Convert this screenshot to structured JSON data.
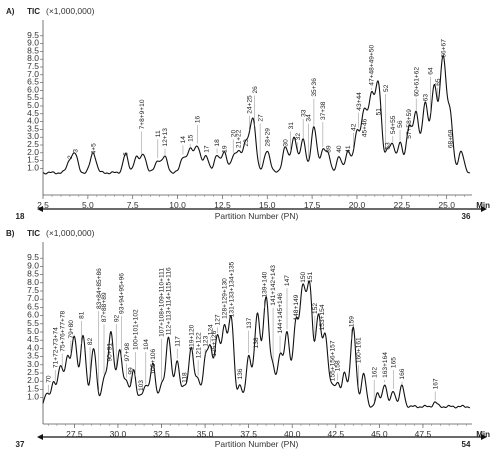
{
  "chart_data": [
    {
      "type": "line",
      "panel_label": "A)",
      "ylabel": "TIC",
      "y_multiplier": "(×1,000,000)",
      "ylim": [
        0,
        10
      ],
      "yticks": [
        "1.0",
        "1.5",
        "2.0",
        "2.5",
        "3.0",
        "3.5",
        "4.0",
        "4.5",
        "5.0",
        "5.5",
        "6.0",
        "6.5",
        "7.0",
        "7.5",
        "8.0",
        "8.5",
        "9.0",
        "9.5"
      ],
      "xlim": [
        2.5,
        26.3
      ],
      "xticks": [
        "2.5",
        "5.0",
        "7.5",
        "10.0",
        "12.5",
        "15.0",
        "17.5",
        "20.0",
        "22.5",
        "25.0"
      ],
      "xunit": "Min",
      "pn_label": "Partition Number (PN)",
      "pn_start": "18",
      "pn_end": "36",
      "baseline": 0.72,
      "peaks": [
        {
          "t": 4.0,
          "h": 1.0,
          "w": 0.16
        },
        {
          "t": 4.3,
          "h": 1.3,
          "w": 0.15
        },
        {
          "t": 5.3,
          "h": 1.5,
          "w": 0.16
        },
        {
          "t": 7.1,
          "h": 1.4,
          "w": 0.14
        },
        {
          "t": 7.7,
          "h": 1.2,
          "w": 0.15
        },
        {
          "t": 8.1,
          "h": 1.4,
          "w": 0.15
        },
        {
          "t": 8.9,
          "h": 1.0,
          "w": 0.16
        },
        {
          "t": 9.3,
          "h": 1.2,
          "w": 0.15
        },
        {
          "t": 10.3,
          "h": 1.2,
          "w": 0.15
        },
        {
          "t": 10.7,
          "h": 1.6,
          "w": 0.16
        },
        {
          "t": 11.1,
          "h": 1.9,
          "w": 0.17
        },
        {
          "t": 11.6,
          "h": 1.3,
          "w": 0.15
        },
        {
          "t": 12.2,
          "h": 1.3,
          "w": 0.15
        },
        {
          "t": 12.6,
          "h": 1.5,
          "w": 0.15
        },
        {
          "t": 13.1,
          "h": 1.2,
          "w": 0.14
        },
        {
          "t": 13.4,
          "h": 1.4,
          "w": 0.15
        },
        {
          "t": 13.8,
          "h": 2.1,
          "w": 0.16
        },
        {
          "t": 14.2,
          "h": 3.6,
          "w": 0.17
        },
        {
          "t": 15.0,
          "h": 1.6,
          "w": 0.17
        },
        {
          "t": 16.0,
          "h": 1.9,
          "w": 0.15
        },
        {
          "t": 16.5,
          "h": 2.5,
          "w": 0.16
        },
        {
          "t": 17.0,
          "h": 2.3,
          "w": 0.15
        },
        {
          "t": 17.6,
          "h": 3.1,
          "w": 0.16
        },
        {
          "t": 18.1,
          "h": 1.6,
          "w": 0.14
        },
        {
          "t": 18.4,
          "h": 1.3,
          "w": 0.14
        },
        {
          "t": 19.0,
          "h": 1.2,
          "w": 0.14
        },
        {
          "t": 19.5,
          "h": 1.6,
          "w": 0.15
        },
        {
          "t": 20.0,
          "h": 2.8,
          "w": 0.16
        },
        {
          "t": 20.4,
          "h": 3.9,
          "w": 0.16
        },
        {
          "t": 20.8,
          "h": 4.9,
          "w": 0.17
        },
        {
          "t": 21.2,
          "h": 5.7,
          "w": 0.17
        },
        {
          "t": 21.7,
          "h": 1.5,
          "w": 0.14
        },
        {
          "t": 22.0,
          "h": 1.9,
          "w": 0.14
        },
        {
          "t": 22.4,
          "h": 2.1,
          "w": 0.14
        },
        {
          "t": 22.9,
          "h": 3.1,
          "w": 0.16
        },
        {
          "t": 23.3,
          "h": 3.9,
          "w": 0.16
        },
        {
          "t": 23.8,
          "h": 4.6,
          "w": 0.17
        },
        {
          "t": 24.3,
          "h": 5.7,
          "w": 0.17
        },
        {
          "t": 24.8,
          "h": 7.6,
          "w": 0.18
        },
        {
          "t": 25.2,
          "h": 3.6,
          "w": 0.15
        },
        {
          "t": 25.8,
          "h": 1.6,
          "w": 0.15
        }
      ],
      "labels": [
        {
          "t": 4.0,
          "text": "2",
          "y": 1.6
        },
        {
          "t": 4.3,
          "text": "3",
          "y": 2.0
        },
        {
          "t": 5.3,
          "text": "4+5",
          "y": 1.9
        },
        {
          "t": 7.1,
          "text": "6",
          "y": 1.8
        },
        {
          "t": 8.0,
          "text": "7+8+9+10",
          "y": 3.5
        },
        {
          "t": 8.9,
          "text": "11",
          "y": 3.0
        },
        {
          "t": 9.3,
          "text": "12+13",
          "y": 2.4
        },
        {
          "t": 10.3,
          "text": "14",
          "y": 2.6
        },
        {
          "t": 10.7,
          "text": "15",
          "y": 2.7
        },
        {
          "t": 11.1,
          "text": "16",
          "y": 3.9
        },
        {
          "t": 11.6,
          "text": "17",
          "y": 2.0
        },
        {
          "t": 12.2,
          "text": "18",
          "y": 2.4
        },
        {
          "t": 12.6,
          "text": "19",
          "y": 2.0
        },
        {
          "t": 13.1,
          "text": "20",
          "y": 3.0
        },
        {
          "t": 13.4,
          "text": "21+22",
          "y": 2.3
        },
        {
          "t": 13.8,
          "text": "23",
          "y": 2.4
        },
        {
          "t": 14.0,
          "text": "24+25",
          "y": 4.5
        },
        {
          "t": 14.3,
          "text": "26",
          "y": 5.8
        },
        {
          "t": 14.6,
          "text": "27",
          "y": 4.0
        },
        {
          "t": 15.0,
          "text": "28+29",
          "y": 2.4
        },
        {
          "t": 16.0,
          "text": "30",
          "y": 2.4
        },
        {
          "t": 16.3,
          "text": "31",
          "y": 3.5
        },
        {
          "t": 16.7,
          "text": "32",
          "y": 2.8
        },
        {
          "t": 17.0,
          "text": "33",
          "y": 4.3
        },
        {
          "t": 17.3,
          "text": "34",
          "y": 4.0
        },
        {
          "t": 17.6,
          "text": "35+36",
          "y": 5.6
        },
        {
          "t": 18.1,
          "text": "37+38",
          "y": 4.1
        },
        {
          "t": 18.4,
          "text": "39",
          "y": 2.0
        },
        {
          "t": 19.0,
          "text": "40",
          "y": 2.0
        },
        {
          "t": 19.5,
          "text": "41",
          "y": 2.0
        },
        {
          "t": 19.8,
          "text": "42",
          "y": 3.4
        },
        {
          "t": 20.1,
          "text": "43+44",
          "y": 4.7
        },
        {
          "t": 20.4,
          "text": "45+46",
          "y": 3.0
        },
        {
          "t": 20.8,
          "text": "47+48+49+50",
          "y": 6.3
        },
        {
          "t": 21.2,
          "text": "51",
          "y": 4.4
        },
        {
          "t": 21.6,
          "text": "52",
          "y": 5.9
        },
        {
          "t": 21.7,
          "text": "53",
          "y": 2.2
        },
        {
          "t": 22.0,
          "text": "54+55",
          "y": 3.2
        },
        {
          "t": 22.4,
          "text": "56",
          "y": 3.6
        },
        {
          "t": 22.9,
          "text": "57+58+59",
          "y": 2.9
        },
        {
          "t": 23.3,
          "text": "60+61+62",
          "y": 5.6
        },
        {
          "t": 23.8,
          "text": "63",
          "y": 5.3
        },
        {
          "t": 24.1,
          "text": "64",
          "y": 7.0
        },
        {
          "t": 24.5,
          "text": "65",
          "y": 6.3
        },
        {
          "t": 24.8,
          "text": "66+67",
          "y": 8.1
        },
        {
          "t": 25.2,
          "text": "68+69",
          "y": 2.3
        }
      ]
    },
    {
      "type": "line",
      "panel_label": "B)",
      "ylabel": "TIC",
      "y_multiplier": "(×1,000,000)",
      "ylim": [
        0,
        10
      ],
      "yticks": [
        "1.0",
        "1.5",
        "2.0",
        "2.5",
        "3.0",
        "3.5",
        "4.0",
        "4.5",
        "5.0",
        "5.5",
        "6.0",
        "6.5",
        "7.0",
        "7.5",
        "8.0",
        "8.5",
        "9.0",
        "9.5"
      ],
      "xlim": [
        25.7,
        50.2
      ],
      "xticks": [
        "27.5",
        "30.0",
        "32.5",
        "35.0",
        "37.5",
        "40.0",
        "42.5",
        "45.0",
        "47.5"
      ],
      "xunit": "Min",
      "pn_label": "Partition Number (PN)",
      "pn_start": "37",
      "pn_end": "54",
      "baseline": 0.45,
      "peaks": [
        {
          "t": 25.9,
          "h": 0.9,
          "w": 0.13
        },
        {
          "t": 26.3,
          "h": 1.6,
          "w": 0.14
        },
        {
          "t": 26.7,
          "h": 2.5,
          "w": 0.15
        },
        {
          "t": 27.1,
          "h": 3.0,
          "w": 0.15
        },
        {
          "t": 27.5,
          "h": 4.3,
          "w": 0.16
        },
        {
          "t": 28.0,
          "h": 4.4,
          "w": 0.16
        },
        {
          "t": 28.6,
          "h": 3.7,
          "w": 0.16
        },
        {
          "t": 29.2,
          "h": 1.8,
          "w": 0.14
        },
        {
          "t": 29.6,
          "h": 4.6,
          "w": 0.16
        },
        {
          "t": 30.1,
          "h": 3.5,
          "w": 0.16
        },
        {
          "t": 30.5,
          "h": 1.6,
          "w": 0.13
        },
        {
          "t": 30.9,
          "h": 2.3,
          "w": 0.14
        },
        {
          "t": 31.3,
          "h": 0.8,
          "w": 0.12
        },
        {
          "t": 31.6,
          "h": 1.3,
          "w": 0.13
        },
        {
          "t": 32.0,
          "h": 2.8,
          "w": 0.15
        },
        {
          "t": 32.5,
          "h": 1.4,
          "w": 0.13
        },
        {
          "t": 32.9,
          "h": 4.3,
          "w": 0.16
        },
        {
          "t": 33.4,
          "h": 2.9,
          "w": 0.15
        },
        {
          "t": 33.8,
          "h": 1.2,
          "w": 0.12
        },
        {
          "t": 34.2,
          "h": 3.7,
          "w": 0.16
        },
        {
          "t": 34.6,
          "h": 1.7,
          "w": 0.13
        },
        {
          "t": 35.0,
          "h": 2.7,
          "w": 0.14
        },
        {
          "t": 35.3,
          "h": 3.5,
          "w": 0.15
        },
        {
          "t": 35.7,
          "h": 4.2,
          "w": 0.15
        },
        {
          "t": 36.1,
          "h": 4.8,
          "w": 0.16
        },
        {
          "t": 36.5,
          "h": 5.4,
          "w": 0.16
        },
        {
          "t": 37.0,
          "h": 1.4,
          "w": 0.13
        },
        {
          "t": 37.5,
          "h": 3.2,
          "w": 0.15
        },
        {
          "t": 38.0,
          "h": 5.7,
          "w": 0.17
        },
        {
          "t": 38.5,
          "h": 6.7,
          "w": 0.17
        },
        {
          "t": 38.9,
          "h": 2.3,
          "w": 0.14
        },
        {
          "t": 39.3,
          "h": 3.1,
          "w": 0.15
        },
        {
          "t": 39.7,
          "h": 4.6,
          "w": 0.16
        },
        {
          "t": 40.2,
          "h": 5.0,
          "w": 0.16
        },
        {
          "t": 40.6,
          "h": 6.9,
          "w": 0.17
        },
        {
          "t": 41.0,
          "h": 7.3,
          "w": 0.17
        },
        {
          "t": 41.5,
          "h": 5.5,
          "w": 0.16
        },
        {
          "t": 41.9,
          "h": 4.3,
          "w": 0.16
        },
        {
          "t": 42.3,
          "h": 1.3,
          "w": 0.13
        },
        {
          "t": 42.6,
          "h": 1.5,
          "w": 0.13
        },
        {
          "t": 43.0,
          "h": 2.2,
          "w": 0.14
        },
        {
          "t": 43.5,
          "h": 4.9,
          "w": 0.16
        },
        {
          "t": 44.1,
          "h": 2.1,
          "w": 0.14
        },
        {
          "t": 44.9,
          "h": 0.9,
          "w": 0.12
        },
        {
          "t": 45.3,
          "h": 1.5,
          "w": 0.13
        },
        {
          "t": 45.8,
          "h": 1.1,
          "w": 0.13
        },
        {
          "t": 46.3,
          "h": 1.4,
          "w": 0.13
        },
        {
          "t": 48.2,
          "h": 0.4,
          "w": 0.12
        }
      ],
      "labels": [
        {
          "t": 26.0,
          "text": "70",
          "y": 1.9
        },
        {
          "t": 26.4,
          "text": "71+72+73+74",
          "y": 2.8
        },
        {
          "t": 26.8,
          "text": "75+76+77+78",
          "y": 3.8
        },
        {
          "t": 27.3,
          "text": "79+80",
          "y": 4.6
        },
        {
          "t": 27.9,
          "text": "81",
          "y": 5.8
        },
        {
          "t": 28.4,
          "text": "82",
          "y": 4.2
        },
        {
          "t": 28.9,
          "text": "83+84+85+86",
          "y": 6.4
        },
        {
          "t": 29.2,
          "text": "87+88+89",
          "y": 5.6
        },
        {
          "t": 29.5,
          "text": "90+91",
          "y": 3.2
        },
        {
          "t": 29.9,
          "text": "92",
          "y": 5.6
        },
        {
          "t": 30.2,
          "text": "93+94+95+96",
          "y": 6.1
        },
        {
          "t": 30.5,
          "text": "97+98",
          "y": 3.2
        },
        {
          "t": 30.7,
          "text": "99",
          "y": 2.4
        },
        {
          "t": 31.0,
          "text": "100+101+102",
          "y": 3.9
        },
        {
          "t": 31.3,
          "text": "103",
          "y": 1.4
        },
        {
          "t": 31.6,
          "text": "104",
          "y": 3.9
        },
        {
          "t": 32.0,
          "text": "105+106",
          "y": 2.4
        },
        {
          "t": 32.5,
          "text": "107+108+109+110+111",
          "y": 4.7
        },
        {
          "t": 32.9,
          "text": "112+113+114+115+116",
          "y": 4.8
        },
        {
          "t": 33.4,
          "text": "117",
          "y": 4.1
        },
        {
          "t": 33.8,
          "text": "118",
          "y": 1.9
        },
        {
          "t": 34.2,
          "text": "119+120",
          "y": 3.9
        },
        {
          "t": 34.6,
          "text": "121+122",
          "y": 3.4
        },
        {
          "t": 35.0,
          "text": "123",
          "y": 4.1
        },
        {
          "t": 35.3,
          "text": "124",
          "y": 4.8
        },
        {
          "t": 35.5,
          "text": "125+126",
          "y": 3.5
        },
        {
          "t": 35.7,
          "text": "127",
          "y": 5.4
        },
        {
          "t": 36.1,
          "text": "128+129+130",
          "y": 5.8
        },
        {
          "t": 36.5,
          "text": "131+133+134+135",
          "y": 5.9
        },
        {
          "t": 37.0,
          "text": "136",
          "y": 2.1
        },
        {
          "t": 37.5,
          "text": "137",
          "y": 5.2
        },
        {
          "t": 37.9,
          "text": "138",
          "y": 4.0
        },
        {
          "t": 38.4,
          "text": "139+140",
          "y": 7.1
        },
        {
          "t": 38.9,
          "text": "141+142+143",
          "y": 6.6
        },
        {
          "t": 39.3,
          "text": "144+145+146",
          "y": 4.9
        },
        {
          "t": 39.7,
          "text": "147",
          "y": 7.8
        },
        {
          "t": 40.2,
          "text": "148+149",
          "y": 5.7
        },
        {
          "t": 40.6,
          "text": "150",
          "y": 8.0
        },
        {
          "t": 41.0,
          "text": "151",
          "y": 8.0
        },
        {
          "t": 41.3,
          "text": "152",
          "y": 6.1
        },
        {
          "t": 41.7,
          "text": "153+154",
          "y": 5.1
        },
        {
          "t": 42.3,
          "text": "155+156+157",
          "y": 2.0
        },
        {
          "t": 42.6,
          "text": "158",
          "y": 2.6
        },
        {
          "t": 43.4,
          "text": "159",
          "y": 5.3
        },
        {
          "t": 43.8,
          "text": "160+161",
          "y": 3.1
        },
        {
          "t": 44.7,
          "text": "162",
          "y": 2.2
        },
        {
          "t": 45.3,
          "text": "163+164",
          "y": 2.2
        },
        {
          "t": 45.8,
          "text": "165",
          "y": 2.8
        },
        {
          "t": 46.3,
          "text": "166",
          "y": 2.1
        },
        {
          "t": 48.2,
          "text": "167",
          "y": 1.5
        }
      ]
    }
  ]
}
